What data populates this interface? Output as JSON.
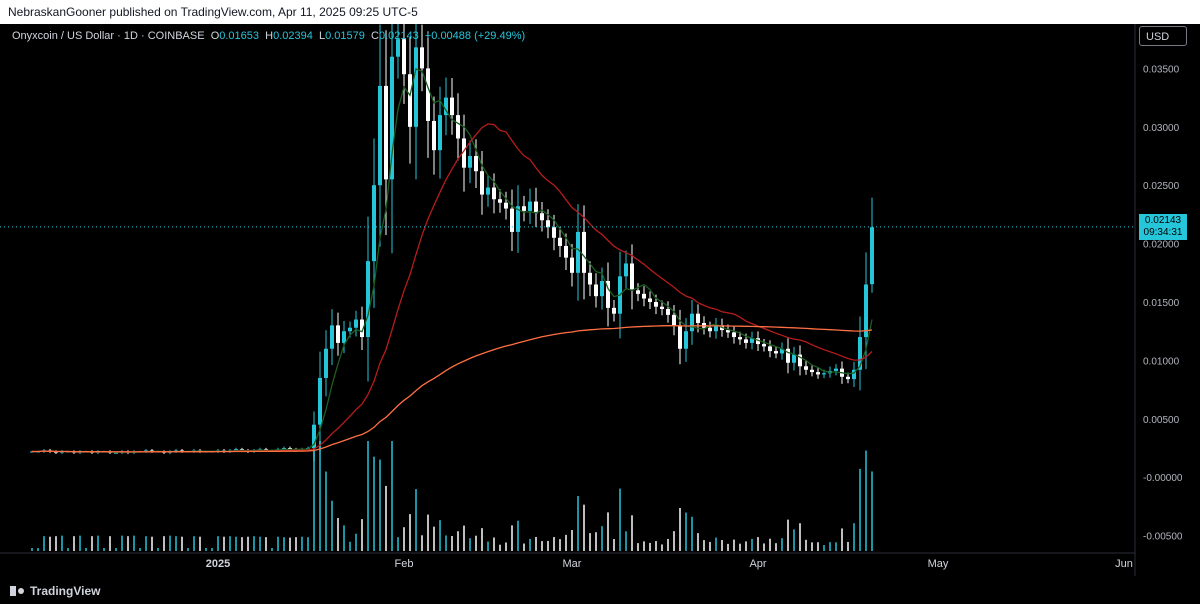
{
  "header": {
    "published": "NebraskanGooner published on TradingView.com, Apr 11, 2025 09:25 UTC-5"
  },
  "legend": {
    "symbol": "Onyxcoin / US Dollar · 1D · COINBASE",
    "o_label": "O",
    "o": "0.01653",
    "h_label": "H",
    "h": "0.02394",
    "l_label": "L",
    "l": "0.01579",
    "c_label": "C",
    "c": "0.02143",
    "change": "+0.00488 (+29.49%)"
  },
  "currency_button": "USD",
  "last_price": {
    "price": "0.02143",
    "countdown": "09:34:31"
  },
  "footer": {
    "brand": "TradingView"
  },
  "colors": {
    "up": "#26c6da",
    "down": "#ffffff",
    "ma_short": "#1b5e20",
    "ma_mid": "#b71c1c",
    "ma_long": "#ff7043",
    "volume": "#26c6da"
  },
  "chart_data": {
    "type": "candlestick",
    "symbol": "Onyxcoin / US Dollar",
    "interval": "1D",
    "exchange": "COINBASE",
    "x_ticks": [
      "2025",
      "Feb",
      "Mar",
      "Apr",
      "May",
      "Jun"
    ],
    "y_ticks": [
      "0.03500",
      "0.03000",
      "0.02500",
      "0.02000",
      "0.01500",
      "0.01000",
      "0.00500",
      "-0.00000",
      "-0.00500"
    ],
    "ylim": [
      -0.0064,
      0.0388
    ],
    "grid": false,
    "candle_window": {
      "start": "2024-12-01",
      "end": "2025-04-11"
    },
    "closes": [
      0.0022,
      0.0022,
      0.0023,
      0.0022,
      0.0021,
      0.0022,
      0.0022,
      0.0021,
      0.0022,
      0.0022,
      0.0021,
      0.0022,
      0.0022,
      0.0021,
      0.0021,
      0.0022,
      0.0021,
      0.0022,
      0.0022,
      0.0023,
      0.0022,
      0.0022,
      0.0021,
      0.0022,
      0.0023,
      0.0022,
      0.0022,
      0.0023,
      0.0022,
      0.0022,
      0.0022,
      0.0023,
      0.0022,
      0.0023,
      0.0024,
      0.0023,
      0.0022,
      0.0023,
      0.0024,
      0.0023,
      0.0023,
      0.0024,
      0.0025,
      0.0024,
      0.0023,
      0.0024,
      0.0025,
      0.0045,
      0.0085,
      0.011,
      0.013,
      0.0115,
      0.0125,
      0.0128,
      0.0135,
      0.012,
      0.0185,
      0.025,
      0.0335,
      0.0255,
      0.036,
      0.0375,
      0.0345,
      0.03,
      0.0368,
      0.035,
      0.0305,
      0.028,
      0.031,
      0.0325,
      0.031,
      0.029,
      0.0265,
      0.0275,
      0.0262,
      0.0242,
      0.0248,
      0.0238,
      0.0235,
      0.023,
      0.021,
      0.0232,
      0.0228,
      0.0236,
      0.0226,
      0.022,
      0.0214,
      0.0205,
      0.0198,
      0.0188,
      0.0175,
      0.021,
      0.0175,
      0.0165,
      0.0155,
      0.0168,
      0.0145,
      0.014,
      0.0172,
      0.0183,
      0.016,
      0.0157,
      0.0153,
      0.015,
      0.0146,
      0.0144,
      0.0139,
      0.013,
      0.011,
      0.0125,
      0.014,
      0.0132,
      0.0128,
      0.0125,
      0.013,
      0.0126,
      0.0124,
      0.012,
      0.0118,
      0.0115,
      0.0119,
      0.0114,
      0.0112,
      0.0108,
      0.0106,
      0.011,
      0.0098,
      0.0105,
      0.0095,
      0.0092,
      0.009,
      0.0088,
      0.0089,
      0.0091,
      0.0093,
      0.0086,
      0.0084,
      0.0092,
      0.012,
      0.0165,
      0.0214
    ],
    "last_candle": {
      "open": 0.01653,
      "high": 0.02394,
      "low": 0.01579,
      "close": 0.02143,
      "change": 0.00488,
      "change_pct": 29.49
    },
    "moving_averages": [
      {
        "period": 5,
        "color": "#1b5e20"
      },
      {
        "period": 20,
        "color": "#b71c1c"
      },
      {
        "period": 200,
        "color": "#ff7043"
      }
    ]
  }
}
